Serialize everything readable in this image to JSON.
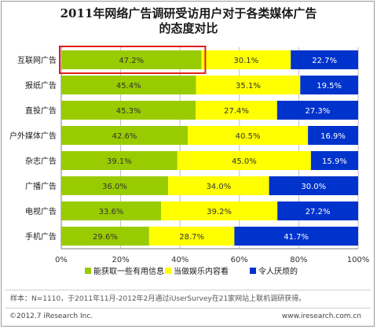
{
  "chart_data": {
    "type": "bar",
    "orientation": "horizontal",
    "stacked": true,
    "title_line1": "2011年网络广告调研受访用户对于各类媒体广告",
    "title_line2": "的态度对比",
    "categories": [
      "互联网广告",
      "报纸广告",
      "直投广告",
      "户外媒体广告",
      "杂志广告",
      "广播广告",
      "电视广告",
      "手机广告"
    ],
    "series": [
      {
        "name": "能获取一些有用信息",
        "color": "#99cc00",
        "values": [
          47.2,
          45.4,
          45.3,
          42.6,
          39.1,
          36.0,
          33.6,
          29.6
        ],
        "labels": [
          "47.2%",
          "45.4%",
          "45.3%",
          "42.6%",
          "39.1%",
          "36.0%",
          "33.6%",
          "29.6%"
        ]
      },
      {
        "name": "当做娱乐内容看",
        "color": "#ffff00",
        "values": [
          30.1,
          35.1,
          27.4,
          40.5,
          45.0,
          34.0,
          39.2,
          28.7
        ],
        "labels": [
          "30.1%",
          "35.1%",
          "27.4%",
          "40.5%",
          "45.0%",
          "34.0%",
          "39.2%",
          "28.7%"
        ]
      },
      {
        "name": "令人厌烦的",
        "color": "#0033cc",
        "values": [
          22.7,
          19.5,
          27.3,
          16.9,
          15.9,
          30.0,
          27.2,
          41.7
        ],
        "labels": [
          "22.7%",
          "19.5%",
          "27.3%",
          "16.9%",
          "15.9%",
          "30.0%",
          "27.2%",
          "41.7%"
        ]
      }
    ],
    "xlim": [
      0,
      100
    ],
    "xticks": [
      "0%",
      "20%",
      "40%",
      "60%",
      "80%",
      "100%"
    ],
    "grid": true,
    "legend": "bottom",
    "highlight_color": "#e0201b"
  },
  "note": "样本：N=1110，于2011年11月-2012年2月通过iUserSurvey在21家网站上联机调研获得。",
  "footer": {
    "copyright": "©2012.7 iResearch Inc.",
    "website": "www.iresearch.com.cn"
  }
}
